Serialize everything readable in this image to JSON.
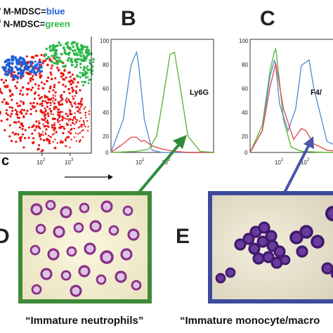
{
  "legend": {
    "line1_sup": "lo",
    "line1_prefix": "M-MDSC=",
    "line1_color_word": "blue",
    "line2_sup": "hi",
    "line2_prefix": "N-MDSC=",
    "line2_color_word": "green"
  },
  "panels": {
    "b": "B",
    "c": "C",
    "d": "D",
    "e": "E"
  },
  "scatter": {
    "axis_label_fragment": "c",
    "x_ticks": [
      "10",
      "10"
    ],
    "x_tick_exps": [
      "2",
      "3"
    ]
  },
  "histogram_b": {
    "marker_label": "Ly6G",
    "y_ticks": [
      "100",
      "80",
      "60",
      "40",
      "20",
      "0"
    ],
    "x_ticks": [
      "10",
      "10"
    ],
    "x_tick_exps": [
      "1",
      "2"
    ]
  },
  "histogram_c": {
    "marker_label": "F4/",
    "y_ticks": [
      "100",
      "80",
      "60",
      "40",
      "20",
      "0"
    ],
    "x_ticks": [
      "10",
      "10"
    ],
    "x_tick_exps": [
      "1",
      "2"
    ]
  },
  "captions": {
    "d": "“Immature neutrophils”",
    "e": "“Immature monocyte/macro"
  },
  "colors": {
    "blue_population": "#1f5fd6",
    "green_population": "#2db84a",
    "red_population": "#e8140f",
    "hist_blue": "#5b8fd9",
    "hist_green": "#5fb83a",
    "hist_red": "#e05050",
    "frame_green": "#3e8a3a",
    "frame_blue": "#3d4a9c",
    "arrow_green": "#2f8c3a",
    "arrow_blue": "#4a56a8"
  },
  "chart_data": [
    {
      "type": "line",
      "panel": "B",
      "xscale": "log",
      "xlim": [
        1,
        10000
      ],
      "ylim": [
        0,
        100
      ],
      "ylabel": "",
      "xlabel": "",
      "marker": "Ly6G",
      "series": [
        {
          "color": "blue",
          "x": [
            1,
            3,
            6,
            9,
            10,
            12,
            20,
            40,
            100,
            1000,
            10000
          ],
          "y": [
            0,
            30,
            80,
            90,
            92,
            80,
            30,
            2,
            0,
            0,
            0
          ]
        },
        {
          "color": "red",
          "x": [
            1,
            3,
            6,
            10,
            15,
            20,
            40,
            100,
            300,
            1000,
            10000
          ],
          "y": [
            0,
            8,
            14,
            14,
            10,
            11,
            6,
            3,
            1,
            0,
            0
          ]
        },
        {
          "color": "green",
          "x": [
            1,
            10,
            30,
            60,
            100,
            200,
            300,
            500,
            1000,
            3000,
            10000
          ],
          "y": [
            0,
            1,
            3,
            15,
            45,
            90,
            92,
            60,
            15,
            1,
            0
          ]
        }
      ]
    },
    {
      "type": "line",
      "panel": "C",
      "xscale": "log",
      "xlim": [
        1,
        10000
      ],
      "ylim": [
        0,
        100
      ],
      "ylabel": "",
      "xlabel": "",
      "marker": "F4/",
      "series": [
        {
          "color": "green",
          "x": [
            1,
            3,
            6,
            9,
            10,
            12,
            20,
            40,
            100,
            1000,
            10000
          ],
          "y": [
            0,
            25,
            75,
            93,
            95,
            80,
            30,
            5,
            1,
            0,
            0
          ]
        },
        {
          "color": "blue",
          "x": [
            1,
            3,
            6,
            9,
            10,
            14,
            30,
            60,
            100,
            200,
            300,
            1000,
            10000
          ],
          "y": [
            0,
            20,
            70,
            85,
            80,
            45,
            20,
            40,
            80,
            85,
            60,
            10,
            0
          ]
        },
        {
          "color": "red",
          "x": [
            1,
            3,
            6,
            10,
            20,
            50,
            100,
            150,
            300,
            1000,
            10000
          ],
          "y": [
            0,
            20,
            60,
            82,
            40,
            12,
            22,
            20,
            8,
            2,
            0
          ]
        }
      ]
    }
  ]
}
